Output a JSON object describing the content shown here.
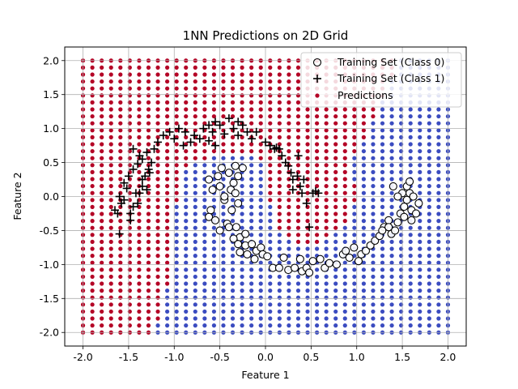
{
  "chart_data": {
    "type": "scatter",
    "title": "1NN Predictions on 2D Grid",
    "xlabel": "Feature 1",
    "ylabel": "Feature 2",
    "xlim": [
      -2.2,
      2.2
    ],
    "ylim": [
      -2.2,
      2.2
    ],
    "xticks": [
      "-2.0",
      "-1.5",
      "-1.0",
      "-0.5",
      "0.0",
      "0.5",
      "1.0",
      "1.5",
      "2.0"
    ],
    "yticks": [
      "-2.0",
      "-1.5",
      "-1.0",
      "-0.5",
      "0.0",
      "0.5",
      "1.0",
      "1.5",
      "2.0"
    ],
    "grid": true,
    "legend_position": "top-right",
    "colors": {
      "class0_region": "#3b4cc0",
      "class1_region": "#b40426",
      "marker": "#000000"
    },
    "grid_points": {
      "name": "Predictions",
      "x_range": [
        -2.0,
        2.0
      ],
      "y_range": [
        -2.0,
        2.0
      ],
      "count_per_axis": 40
    },
    "series": [
      {
        "name": "Training Set (Class 0)",
        "marker": "open-circle",
        "points": [
          [
            -0.6,
            -0.2
          ],
          [
            -0.62,
            -0.3
          ],
          [
            -0.55,
            -0.35
          ],
          [
            -0.58,
            0.1
          ],
          [
            -0.5,
            0.15
          ],
          [
            -0.52,
            0.3
          ],
          [
            -0.48,
            0.42
          ],
          [
            -0.62,
            0.25
          ],
          [
            -0.45,
            -0.05
          ],
          [
            -0.5,
            -0.5
          ],
          [
            -0.42,
            -0.4
          ],
          [
            -0.35,
            0.2
          ],
          [
            -0.38,
            0.1
          ],
          [
            -0.33,
            0.05
          ],
          [
            -0.4,
            0.35
          ],
          [
            -0.33,
            0.45
          ],
          [
            -0.45,
            0.0
          ],
          [
            -0.25,
            0.42
          ],
          [
            -0.3,
            0.3
          ],
          [
            -0.3,
            -0.1
          ],
          [
            -0.37,
            -0.2
          ],
          [
            -0.4,
            -0.45
          ],
          [
            -0.32,
            -0.45
          ],
          [
            -0.28,
            -0.6
          ],
          [
            -0.35,
            -0.62
          ],
          [
            -0.22,
            -0.55
          ],
          [
            -0.3,
            -0.7
          ],
          [
            -0.22,
            -0.72
          ],
          [
            -0.15,
            -0.7
          ],
          [
            -0.28,
            -0.82
          ],
          [
            -0.2,
            -0.85
          ],
          [
            -0.1,
            -0.8
          ],
          [
            -0.05,
            -0.75
          ],
          [
            -0.12,
            -0.92
          ],
          [
            -0.03,
            -0.85
          ],
          [
            0.02,
            -0.88
          ],
          [
            0.08,
            -1.05
          ],
          [
            0.15,
            -1.05
          ],
          [
            0.2,
            -0.9
          ],
          [
            0.25,
            -1.08
          ],
          [
            0.32,
            -1.05
          ],
          [
            0.38,
            -0.92
          ],
          [
            0.4,
            -1.1
          ],
          [
            0.45,
            -1.05
          ],
          [
            0.48,
            -1.12
          ],
          [
            0.52,
            -0.95
          ],
          [
            0.6,
            -0.92
          ],
          [
            0.65,
            -1.05
          ],
          [
            0.7,
            -0.98
          ],
          [
            0.78,
            -1.0
          ],
          [
            0.85,
            -0.85
          ],
          [
            0.88,
            -0.8
          ],
          [
            0.92,
            -0.9
          ],
          [
            0.97,
            -0.75
          ],
          [
            1.02,
            -0.95
          ],
          [
            1.05,
            -0.85
          ],
          [
            1.1,
            -0.8
          ],
          [
            1.15,
            -0.72
          ],
          [
            1.2,
            -0.65
          ],
          [
            1.25,
            -0.58
          ],
          [
            1.3,
            -0.45
          ],
          [
            1.35,
            -0.35
          ],
          [
            1.38,
            -0.55
          ],
          [
            1.42,
            -0.5
          ],
          [
            1.45,
            -0.38
          ],
          [
            1.48,
            -0.25
          ],
          [
            1.52,
            -0.15
          ],
          [
            1.55,
            -0.05
          ],
          [
            1.58,
            0.05
          ],
          [
            1.6,
            -0.2
          ],
          [
            1.62,
            0.0
          ],
          [
            1.55,
            0.15
          ],
          [
            1.5,
            0.05
          ],
          [
            1.45,
            0.0
          ],
          [
            1.4,
            0.15
          ],
          [
            1.35,
            -0.45
          ],
          [
            1.28,
            -0.5
          ],
          [
            1.65,
            -0.25
          ],
          [
            1.68,
            -0.1
          ],
          [
            1.58,
            0.22
          ],
          [
            1.52,
            -0.3
          ],
          [
            1.6,
            -0.35
          ]
        ]
      },
      {
        "name": "Training Set (Class 1)",
        "marker": "plus",
        "points": [
          [
            -1.6,
            -0.55
          ],
          [
            -1.62,
            -0.25
          ],
          [
            -1.65,
            -0.2
          ],
          [
            -1.58,
            -0.1
          ],
          [
            -1.55,
            -0.05
          ],
          [
            -1.6,
            0.0
          ],
          [
            -1.52,
            0.12
          ],
          [
            -1.48,
            -0.25
          ],
          [
            -1.45,
            -0.15
          ],
          [
            -1.42,
            0.05
          ],
          [
            -1.55,
            0.2
          ],
          [
            -1.5,
            0.3
          ],
          [
            -1.45,
            0.4
          ],
          [
            -1.4,
            0.48
          ],
          [
            -1.38,
            0.6
          ],
          [
            -1.35,
            0.55
          ],
          [
            -1.32,
            0.3
          ],
          [
            -1.3,
            0.65
          ],
          [
            -1.28,
            0.4
          ],
          [
            -1.25,
            0.5
          ],
          [
            -1.22,
            0.7
          ],
          [
            -1.35,
            0.15
          ],
          [
            -1.38,
            0.05
          ],
          [
            -1.4,
            -0.1
          ],
          [
            -1.3,
            0.1
          ],
          [
            -1.27,
            0.35
          ],
          [
            -1.18,
            0.8
          ],
          [
            -1.12,
            0.9
          ],
          [
            -1.05,
            0.95
          ],
          [
            -1.0,
            0.85
          ],
          [
            -0.95,
            1.0
          ],
          [
            -0.9,
            0.75
          ],
          [
            -0.88,
            0.95
          ],
          [
            -0.82,
            0.8
          ],
          [
            -0.78,
            0.9
          ],
          [
            -0.72,
            0.85
          ],
          [
            -0.68,
            1.0
          ],
          [
            -0.62,
            1.05
          ],
          [
            -0.58,
            0.95
          ],
          [
            -0.55,
            1.1
          ],
          [
            -0.5,
            1.05
          ],
          [
            -0.45,
            0.92
          ],
          [
            -0.4,
            1.15
          ],
          [
            -0.35,
            1.0
          ],
          [
            -0.3,
            0.9
          ],
          [
            -0.25,
            1.05
          ],
          [
            -0.2,
            0.95
          ],
          [
            -0.15,
            0.85
          ],
          [
            -0.1,
            0.95
          ],
          [
            0.0,
            0.8
          ],
          [
            0.05,
            0.75
          ],
          [
            0.1,
            0.7
          ],
          [
            0.15,
            0.7
          ],
          [
            0.18,
            0.6
          ],
          [
            0.22,
            0.5
          ],
          [
            0.25,
            0.45
          ],
          [
            0.28,
            0.35
          ],
          [
            0.3,
            0.25
          ],
          [
            0.35,
            0.3
          ],
          [
            0.38,
            0.15
          ],
          [
            0.4,
            0.05
          ],
          [
            0.45,
            -0.1
          ],
          [
            0.48,
            -0.45
          ],
          [
            0.52,
            0.05
          ],
          [
            0.55,
            0.08
          ],
          [
            0.58,
            0.05
          ],
          [
            0.36,
            0.6
          ],
          [
            0.3,
            0.1
          ],
          [
            0.42,
            0.25
          ],
          [
            -0.55,
            0.75
          ],
          [
            -0.62,
            0.82
          ],
          [
            -1.45,
            0.7
          ],
          [
            -1.48,
            -0.35
          ],
          [
            -1.35,
            0.25
          ],
          [
            -0.3,
            1.1
          ],
          [
            0.12,
            0.72
          ]
        ]
      }
    ]
  },
  "legend": {
    "items": [
      "Training Set (Class 0)",
      "Training Set (Class 1)",
      "Predictions"
    ]
  }
}
